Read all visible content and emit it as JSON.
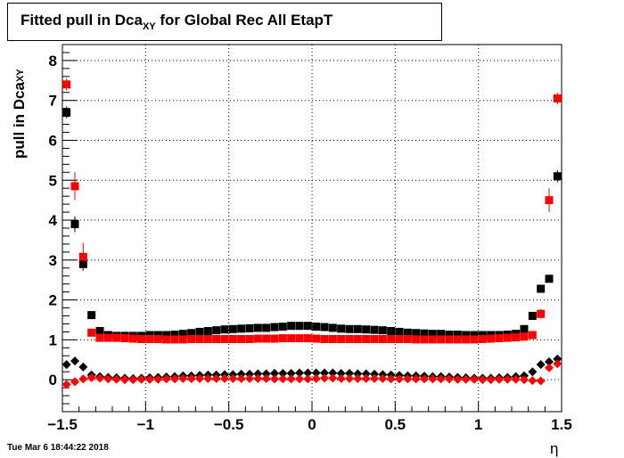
{
  "chart_data": {
    "type": "scatter",
    "title": {
      "main": "Fitted pull in Dca",
      "sub": "XY",
      "rest": " for Global Rec All EtapT"
    },
    "ylabel": {
      "main": "pull in Dca",
      "sub": "XY"
    },
    "xlabel": "η",
    "timestamp": "Tue Mar  6 18:44:22 2018",
    "xlim": [
      -1.5,
      1.5
    ],
    "ylim": [
      -0.8,
      8.4
    ],
    "x_ticks": [
      -1.5,
      -1,
      -0.5,
      0,
      0.5,
      1,
      1.5
    ],
    "x_tick_labels": [
      "−1.5",
      "−1",
      "−0.5",
      "0",
      "0.5",
      "1",
      "1.5"
    ],
    "y_ticks": [
      0,
      1,
      2,
      3,
      4,
      5,
      6,
      7,
      8
    ],
    "y_tick_labels": [
      "0",
      "1",
      "2",
      "3",
      "4",
      "5",
      "6",
      "7",
      "8"
    ],
    "grid": true,
    "colors": {
      "black": "#000000",
      "red": "#ff0000"
    },
    "series": [
      {
        "marker": "square",
        "color": "#000000",
        "x": [
          -1.475,
          -1.425,
          -1.375,
          -1.325,
          -1.275,
          -1.225,
          -1.175,
          -1.125,
          -1.075,
          -1.025,
          -0.975,
          -0.925,
          -0.875,
          -0.825,
          -0.775,
          -0.725,
          -0.675,
          -0.625,
          -0.575,
          -0.525,
          -0.475,
          -0.425,
          -0.375,
          -0.325,
          -0.275,
          -0.225,
          -0.175,
          -0.125,
          -0.075,
          -0.025,
          0.025,
          0.075,
          0.125,
          0.175,
          0.225,
          0.275,
          0.325,
          0.375,
          0.425,
          0.475,
          0.525,
          0.575,
          0.625,
          0.675,
          0.725,
          0.775,
          0.825,
          0.875,
          0.925,
          0.975,
          1.025,
          1.075,
          1.125,
          1.175,
          1.225,
          1.275,
          1.325,
          1.375,
          1.425,
          1.475
        ],
        "y": [
          6.7,
          3.9,
          2.9,
          1.62,
          1.22,
          1.12,
          1.1,
          1.1,
          1.1,
          1.1,
          1.12,
          1.12,
          1.12,
          1.13,
          1.15,
          1.17,
          1.2,
          1.22,
          1.24,
          1.26,
          1.27,
          1.28,
          1.29,
          1.3,
          1.3,
          1.32,
          1.33,
          1.35,
          1.35,
          1.35,
          1.33,
          1.32,
          1.3,
          1.28,
          1.27,
          1.27,
          1.26,
          1.25,
          1.24,
          1.22,
          1.2,
          1.18,
          1.17,
          1.16,
          1.15,
          1.15,
          1.13,
          1.13,
          1.12,
          1.12,
          1.12,
          1.12,
          1.12,
          1.13,
          1.15,
          1.27,
          1.6,
          2.28,
          2.53,
          5.1
        ],
        "yerr": [
          0.15,
          0.2,
          0.15,
          0.1,
          0.05,
          0.03,
          0.02,
          0.02,
          0.02,
          0.02,
          0.02,
          0.02,
          0.02,
          0.02,
          0.02,
          0.02,
          0.02,
          0.02,
          0.02,
          0.02,
          0.02,
          0.02,
          0.02,
          0.02,
          0.02,
          0.02,
          0.02,
          0.02,
          0.02,
          0.02,
          0.02,
          0.02,
          0.02,
          0.02,
          0.02,
          0.02,
          0.02,
          0.02,
          0.02,
          0.02,
          0.02,
          0.02,
          0.02,
          0.02,
          0.02,
          0.02,
          0.02,
          0.02,
          0.02,
          0.02,
          0.02,
          0.02,
          0.02,
          0.02,
          0.03,
          0.05,
          0.08,
          0.1,
          0.1,
          0.15
        ]
      },
      {
        "marker": "square",
        "color": "#ff0000",
        "x": [
          -1.475,
          -1.425,
          -1.375,
          -1.325,
          -1.275,
          -1.225,
          -1.175,
          -1.125,
          -1.075,
          -1.025,
          -0.975,
          -0.925,
          -0.875,
          -0.825,
          -0.775,
          -0.725,
          -0.675,
          -0.625,
          -0.575,
          -0.525,
          -0.475,
          -0.425,
          -0.375,
          -0.325,
          -0.275,
          -0.225,
          -0.175,
          -0.125,
          -0.075,
          -0.025,
          0.025,
          0.075,
          0.125,
          0.175,
          0.225,
          0.275,
          0.325,
          0.375,
          0.425,
          0.475,
          0.525,
          0.575,
          0.625,
          0.675,
          0.725,
          0.775,
          0.825,
          0.875,
          0.925,
          0.975,
          1.025,
          1.075,
          1.125,
          1.175,
          1.225,
          1.275,
          1.325,
          1.375,
          1.425,
          1.475
        ],
        "y": [
          7.4,
          4.85,
          3.08,
          1.18,
          1.05,
          1.05,
          1.05,
          1.04,
          1.03,
          1.02,
          1.02,
          1.02,
          1.01,
          1.01,
          1.01,
          1.02,
          1.02,
          1.02,
          1.02,
          1.02,
          1.02,
          1.02,
          1.02,
          1.03,
          1.03,
          1.03,
          1.04,
          1.04,
          1.04,
          1.04,
          1.03,
          1.02,
          1.02,
          1.02,
          1.02,
          1.02,
          1.02,
          1.02,
          1.02,
          1.02,
          1.02,
          1.02,
          1.01,
          1.01,
          1.01,
          1.01,
          1.01,
          1.01,
          1.01,
          1.01,
          1.02,
          1.03,
          1.04,
          1.05,
          1.06,
          1.08,
          1.12,
          1.65,
          4.5,
          7.05
        ],
        "yerr": [
          0.15,
          0.35,
          0.35,
          0.1,
          0.05,
          0.03,
          0.02,
          0.02,
          0.02,
          0.02,
          0.02,
          0.02,
          0.02,
          0.02,
          0.02,
          0.02,
          0.02,
          0.02,
          0.02,
          0.02,
          0.02,
          0.02,
          0.02,
          0.02,
          0.02,
          0.02,
          0.02,
          0.02,
          0.02,
          0.02,
          0.02,
          0.02,
          0.02,
          0.02,
          0.02,
          0.02,
          0.02,
          0.02,
          0.02,
          0.02,
          0.02,
          0.02,
          0.02,
          0.02,
          0.02,
          0.02,
          0.02,
          0.02,
          0.02,
          0.02,
          0.02,
          0.02,
          0.02,
          0.02,
          0.03,
          0.04,
          0.06,
          0.12,
          0.3,
          0.15
        ]
      },
      {
        "marker": "diamond",
        "color": "#000000",
        "x": [
          -1.475,
          -1.425,
          -1.375,
          -1.325,
          -1.275,
          -1.225,
          -1.175,
          -1.125,
          -1.075,
          -1.025,
          -0.975,
          -0.925,
          -0.875,
          -0.825,
          -0.775,
          -0.725,
          -0.675,
          -0.625,
          -0.575,
          -0.525,
          -0.475,
          -0.425,
          -0.375,
          -0.325,
          -0.275,
          -0.225,
          -0.175,
          -0.125,
          -0.075,
          -0.025,
          0.025,
          0.075,
          0.125,
          0.175,
          0.225,
          0.275,
          0.325,
          0.375,
          0.425,
          0.475,
          0.525,
          0.575,
          0.625,
          0.675,
          0.725,
          0.775,
          0.825,
          0.875,
          0.925,
          0.975,
          1.025,
          1.075,
          1.125,
          1.175,
          1.225,
          1.275,
          1.325,
          1.375,
          1.425,
          1.475
        ],
        "y": [
          0.38,
          0.47,
          0.32,
          0.12,
          0.08,
          0.06,
          0.05,
          0.04,
          0.03,
          0.04,
          0.05,
          0.06,
          0.07,
          0.08,
          0.1,
          0.1,
          0.11,
          0.12,
          0.12,
          0.13,
          0.13,
          0.14,
          0.14,
          0.15,
          0.15,
          0.16,
          0.16,
          0.16,
          0.17,
          0.17,
          0.17,
          0.17,
          0.17,
          0.16,
          0.16,
          0.15,
          0.15,
          0.14,
          0.13,
          0.12,
          0.11,
          0.1,
          0.1,
          0.09,
          0.08,
          0.08,
          0.07,
          0.06,
          0.05,
          0.04,
          0.04,
          0.04,
          0.05,
          0.06,
          0.08,
          0.1,
          0.2,
          0.38,
          0.45,
          0.52
        ],
        "yerr": [
          0.05,
          0.05,
          0.04,
          0.02,
          0.01,
          0.01,
          0.01,
          0.01,
          0.01,
          0.01,
          0.01,
          0.01,
          0.01,
          0.01,
          0.01,
          0.01,
          0.01,
          0.01,
          0.01,
          0.01,
          0.01,
          0.01,
          0.01,
          0.01,
          0.01,
          0.01,
          0.01,
          0.01,
          0.01,
          0.01,
          0.01,
          0.01,
          0.01,
          0.01,
          0.01,
          0.01,
          0.01,
          0.01,
          0.01,
          0.01,
          0.01,
          0.01,
          0.01,
          0.01,
          0.01,
          0.01,
          0.01,
          0.01,
          0.01,
          0.01,
          0.01,
          0.01,
          0.01,
          0.01,
          0.01,
          0.01,
          0.02,
          0.03,
          0.04,
          0.05
        ]
      },
      {
        "marker": "diamond",
        "color": "#ff0000",
        "x": [
          -1.475,
          -1.425,
          -1.375,
          -1.325,
          -1.275,
          -1.225,
          -1.175,
          -1.125,
          -1.075,
          -1.025,
          -0.975,
          -0.925,
          -0.875,
          -0.825,
          -0.775,
          -0.725,
          -0.675,
          -0.625,
          -0.575,
          -0.525,
          -0.475,
          -0.425,
          -0.375,
          -0.325,
          -0.275,
          -0.225,
          -0.175,
          -0.125,
          -0.075,
          -0.025,
          0.025,
          0.075,
          0.125,
          0.175,
          0.225,
          0.275,
          0.325,
          0.375,
          0.425,
          0.475,
          0.525,
          0.575,
          0.625,
          0.675,
          0.725,
          0.775,
          0.825,
          0.875,
          0.925,
          0.975,
          1.025,
          1.075,
          1.125,
          1.175,
          1.225,
          1.275,
          1.325,
          1.375,
          1.425,
          1.475
        ],
        "y": [
          -0.12,
          -0.05,
          0.02,
          0.05,
          0.04,
          0.02,
          0.01,
          0.0,
          0.0,
          0.01,
          0.01,
          0.01,
          0.02,
          0.02,
          0.03,
          0.03,
          0.03,
          0.03,
          0.03,
          0.03,
          0.03,
          0.03,
          0.03,
          0.03,
          0.03,
          0.02,
          0.02,
          0.02,
          0.02,
          0.02,
          0.03,
          0.04,
          0.04,
          0.03,
          0.03,
          0.03,
          0.03,
          0.03,
          0.03,
          0.02,
          0.02,
          0.02,
          0.02,
          0.02,
          0.02,
          0.02,
          0.02,
          0.01,
          0.01,
          0.01,
          0.0,
          0.0,
          0.01,
          0.01,
          0.01,
          0.0,
          -0.02,
          -0.03,
          0.3,
          0.4
        ],
        "yerr": [
          0.05,
          0.1,
          0.08,
          0.02,
          0.01,
          0.01,
          0.01,
          0.01,
          0.01,
          0.01,
          0.01,
          0.01,
          0.01,
          0.01,
          0.01,
          0.01,
          0.01,
          0.01,
          0.01,
          0.01,
          0.01,
          0.01,
          0.01,
          0.01,
          0.01,
          0.01,
          0.01,
          0.01,
          0.01,
          0.01,
          0.01,
          0.01,
          0.01,
          0.01,
          0.01,
          0.01,
          0.01,
          0.01,
          0.01,
          0.01,
          0.01,
          0.01,
          0.01,
          0.01,
          0.01,
          0.01,
          0.01,
          0.01,
          0.01,
          0.01,
          0.01,
          0.01,
          0.01,
          0.01,
          0.01,
          0.01,
          0.02,
          0.02,
          0.1,
          0.1
        ]
      }
    ]
  }
}
